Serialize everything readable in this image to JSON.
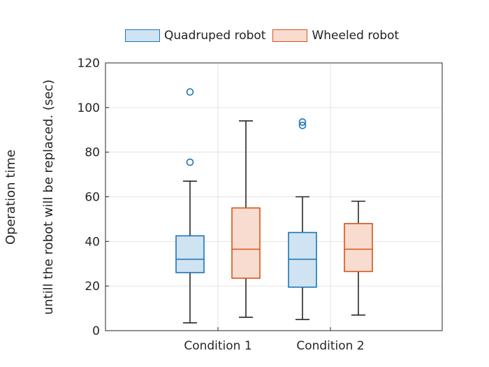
{
  "chart_data": {
    "type": "boxplot",
    "ylabel_line1": "Operation time",
    "ylabel_line2": "untill the robot will be replaced. (sec)",
    "ylim": [
      0,
      120
    ],
    "yticks": [
      0,
      20,
      40,
      60,
      80,
      100,
      120
    ],
    "categories": [
      "Condition 1",
      "Condition 2"
    ],
    "grid": true,
    "legend_position": "top",
    "series": [
      {
        "name": "Quadruped robot",
        "stroke": "#1a75b8",
        "fill": "#cfe3f2",
        "boxes": [
          {
            "min": 3.5,
            "q1": 26,
            "median": 32,
            "q3": 42.5,
            "max": 67,
            "outliers": [
              75.5,
              107
            ]
          },
          {
            "min": 5,
            "q1": 19.5,
            "median": 32,
            "q3": 44,
            "max": 60,
            "outliers": [
              92,
              93.5
            ]
          }
        ]
      },
      {
        "name": "Wheeled robot",
        "stroke": "#d95319",
        "fill": "#f9dcd0",
        "boxes": [
          {
            "min": 6,
            "q1": 23.5,
            "median": 36.5,
            "q3": 55,
            "max": 94,
            "outliers": []
          },
          {
            "min": 7,
            "q1": 26.5,
            "median": 36.5,
            "q3": 48,
            "max": 58,
            "outliers": []
          }
        ]
      }
    ]
  }
}
